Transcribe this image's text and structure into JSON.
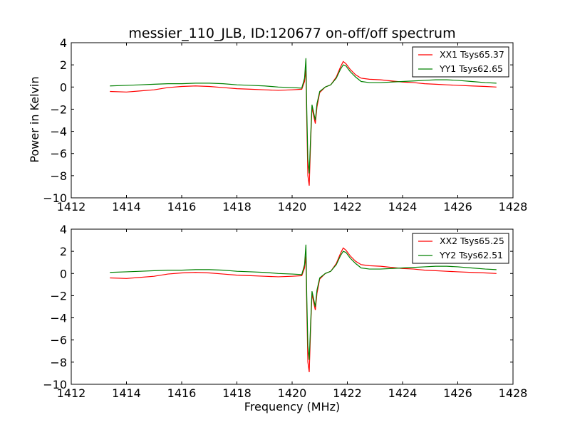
{
  "figure": {
    "title": "messier_110_JLB, ID:120677 on-off/off spectrum",
    "ylabel": "Power in Kelvin",
    "xlabel": "Frequency (MHz)"
  },
  "chart_data": [
    {
      "type": "line",
      "xlim": [
        1412,
        1428
      ],
      "ylim": [
        -10,
        4
      ],
      "xticks": [
        "1412",
        "1414",
        "1416",
        "1418",
        "1420",
        "1422",
        "1424",
        "1426",
        "1428"
      ],
      "yticks": [
        "4",
        "2",
        "0",
        "−2",
        "−4",
        "−6",
        "−8",
        "−10"
      ],
      "legend_position": "top-right",
      "grid": false,
      "series": [
        {
          "name": "XX1 Tsys65.37",
          "color": "#ff0000",
          "points": [
            [
              1413.4,
              -0.4
            ],
            [
              1414.0,
              -0.45
            ],
            [
              1414.5,
              -0.35
            ],
            [
              1415.0,
              -0.25
            ],
            [
              1415.5,
              -0.05
            ],
            [
              1416.0,
              0.05
            ],
            [
              1416.5,
              0.1
            ],
            [
              1417.0,
              0.05
            ],
            [
              1417.5,
              -0.05
            ],
            [
              1418.0,
              -0.15
            ],
            [
              1418.5,
              -0.2
            ],
            [
              1419.0,
              -0.25
            ],
            [
              1419.5,
              -0.3
            ],
            [
              1420.0,
              -0.25
            ],
            [
              1420.35,
              -0.2
            ],
            [
              1420.45,
              0.5
            ],
            [
              1420.5,
              1.6
            ],
            [
              1420.53,
              -3.0
            ],
            [
              1420.57,
              -8.0
            ],
            [
              1420.62,
              -8.9
            ],
            [
              1420.67,
              -5.0
            ],
            [
              1420.72,
              -1.8
            ],
            [
              1420.78,
              -2.6
            ],
            [
              1420.84,
              -3.3
            ],
            [
              1420.9,
              -1.8
            ],
            [
              1421.0,
              -0.5
            ],
            [
              1421.2,
              0.0
            ],
            [
              1421.4,
              0.2
            ],
            [
              1421.6,
              0.9
            ],
            [
              1421.75,
              1.8
            ],
            [
              1421.85,
              2.3
            ],
            [
              1421.95,
              2.1
            ],
            [
              1422.1,
              1.6
            ],
            [
              1422.3,
              1.1
            ],
            [
              1422.5,
              0.8
            ],
            [
              1422.8,
              0.7
            ],
            [
              1423.2,
              0.65
            ],
            [
              1423.6,
              0.55
            ],
            [
              1424.0,
              0.45
            ],
            [
              1424.4,
              0.4
            ],
            [
              1424.8,
              0.3
            ],
            [
              1425.2,
              0.25
            ],
            [
              1425.6,
              0.2
            ],
            [
              1426.0,
              0.15
            ],
            [
              1426.5,
              0.1
            ],
            [
              1427.0,
              0.05
            ],
            [
              1427.4,
              0.0
            ]
          ]
        },
        {
          "name": "YY1 Tsys62.65",
          "color": "#008000",
          "points": [
            [
              1413.4,
              0.1
            ],
            [
              1414.0,
              0.15
            ],
            [
              1414.5,
              0.2
            ],
            [
              1415.0,
              0.25
            ],
            [
              1415.5,
              0.3
            ],
            [
              1416.0,
              0.3
            ],
            [
              1416.5,
              0.35
            ],
            [
              1417.0,
              0.35
            ],
            [
              1417.5,
              0.3
            ],
            [
              1418.0,
              0.2
            ],
            [
              1418.5,
              0.15
            ],
            [
              1419.0,
              0.1
            ],
            [
              1419.5,
              0.0
            ],
            [
              1420.0,
              -0.05
            ],
            [
              1420.35,
              -0.1
            ],
            [
              1420.45,
              0.8
            ],
            [
              1420.5,
              2.6
            ],
            [
              1420.53,
              -2.0
            ],
            [
              1420.57,
              -6.5
            ],
            [
              1420.62,
              -7.8
            ],
            [
              1420.67,
              -4.5
            ],
            [
              1420.72,
              -1.6
            ],
            [
              1420.78,
              -2.3
            ],
            [
              1420.84,
              -3.0
            ],
            [
              1420.9,
              -1.5
            ],
            [
              1421.0,
              -0.4
            ],
            [
              1421.2,
              0.0
            ],
            [
              1421.4,
              0.2
            ],
            [
              1421.6,
              0.8
            ],
            [
              1421.75,
              1.6
            ],
            [
              1421.85,
              2.0
            ],
            [
              1421.95,
              1.9
            ],
            [
              1422.1,
              1.4
            ],
            [
              1422.3,
              0.9
            ],
            [
              1422.5,
              0.5
            ],
            [
              1422.8,
              0.4
            ],
            [
              1423.2,
              0.4
            ],
            [
              1423.6,
              0.45
            ],
            [
              1424.0,
              0.5
            ],
            [
              1424.4,
              0.55
            ],
            [
              1424.8,
              0.6
            ],
            [
              1425.2,
              0.65
            ],
            [
              1425.6,
              0.65
            ],
            [
              1426.0,
              0.6
            ],
            [
              1426.5,
              0.5
            ],
            [
              1427.0,
              0.4
            ],
            [
              1427.4,
              0.35
            ]
          ]
        }
      ]
    },
    {
      "type": "line",
      "xlim": [
        1412,
        1428
      ],
      "ylim": [
        -10,
        4
      ],
      "xticks": [
        "1412",
        "1414",
        "1416",
        "1418",
        "1420",
        "1422",
        "1424",
        "1426",
        "1428"
      ],
      "yticks": [
        "4",
        "2",
        "0",
        "−2",
        "−4",
        "−6",
        "−8",
        "−10"
      ],
      "legend_position": "top-right",
      "grid": false,
      "series": [
        {
          "name": "XX2 Tsys65.25",
          "color": "#ff0000",
          "points": [
            [
              1413.4,
              -0.4
            ],
            [
              1414.0,
              -0.45
            ],
            [
              1414.5,
              -0.35
            ],
            [
              1415.0,
              -0.25
            ],
            [
              1415.5,
              -0.05
            ],
            [
              1416.0,
              0.05
            ],
            [
              1416.5,
              0.1
            ],
            [
              1417.0,
              0.05
            ],
            [
              1417.5,
              -0.05
            ],
            [
              1418.0,
              -0.15
            ],
            [
              1418.5,
              -0.2
            ],
            [
              1419.0,
              -0.25
            ],
            [
              1419.5,
              -0.3
            ],
            [
              1420.0,
              -0.25
            ],
            [
              1420.35,
              -0.2
            ],
            [
              1420.45,
              0.5
            ],
            [
              1420.5,
              1.6
            ],
            [
              1420.53,
              -3.0
            ],
            [
              1420.57,
              -8.0
            ],
            [
              1420.62,
              -8.9
            ],
            [
              1420.67,
              -5.0
            ],
            [
              1420.72,
              -1.8
            ],
            [
              1420.78,
              -2.6
            ],
            [
              1420.84,
              -3.3
            ],
            [
              1420.9,
              -1.8
            ],
            [
              1421.0,
              -0.5
            ],
            [
              1421.2,
              0.0
            ],
            [
              1421.4,
              0.2
            ],
            [
              1421.6,
              0.9
            ],
            [
              1421.75,
              1.8
            ],
            [
              1421.85,
              2.3
            ],
            [
              1421.95,
              2.1
            ],
            [
              1422.1,
              1.6
            ],
            [
              1422.3,
              1.1
            ],
            [
              1422.5,
              0.8
            ],
            [
              1422.8,
              0.7
            ],
            [
              1423.2,
              0.65
            ],
            [
              1423.6,
              0.55
            ],
            [
              1424.0,
              0.45
            ],
            [
              1424.4,
              0.4
            ],
            [
              1424.8,
              0.3
            ],
            [
              1425.2,
              0.25
            ],
            [
              1425.6,
              0.2
            ],
            [
              1426.0,
              0.15
            ],
            [
              1426.5,
              0.1
            ],
            [
              1427.0,
              0.05
            ],
            [
              1427.4,
              0.0
            ]
          ]
        },
        {
          "name": "YY2 Tsys62.51",
          "color": "#008000",
          "points": [
            [
              1413.4,
              0.1
            ],
            [
              1414.0,
              0.15
            ],
            [
              1414.5,
              0.2
            ],
            [
              1415.0,
              0.25
            ],
            [
              1415.5,
              0.3
            ],
            [
              1416.0,
              0.3
            ],
            [
              1416.5,
              0.35
            ],
            [
              1417.0,
              0.35
            ],
            [
              1417.5,
              0.3
            ],
            [
              1418.0,
              0.2
            ],
            [
              1418.5,
              0.15
            ],
            [
              1419.0,
              0.1
            ],
            [
              1419.5,
              0.0
            ],
            [
              1420.0,
              -0.05
            ],
            [
              1420.35,
              -0.1
            ],
            [
              1420.45,
              0.8
            ],
            [
              1420.5,
              2.6
            ],
            [
              1420.53,
              -2.0
            ],
            [
              1420.57,
              -6.5
            ],
            [
              1420.62,
              -7.8
            ],
            [
              1420.67,
              -4.5
            ],
            [
              1420.72,
              -1.6
            ],
            [
              1420.78,
              -2.3
            ],
            [
              1420.84,
              -3.0
            ],
            [
              1420.9,
              -1.5
            ],
            [
              1421.0,
              -0.4
            ],
            [
              1421.2,
              0.0
            ],
            [
              1421.4,
              0.2
            ],
            [
              1421.6,
              0.8
            ],
            [
              1421.75,
              1.6
            ],
            [
              1421.85,
              2.0
            ],
            [
              1421.95,
              1.9
            ],
            [
              1422.1,
              1.4
            ],
            [
              1422.3,
              0.9
            ],
            [
              1422.5,
              0.5
            ],
            [
              1422.8,
              0.4
            ],
            [
              1423.2,
              0.4
            ],
            [
              1423.6,
              0.45
            ],
            [
              1424.0,
              0.5
            ],
            [
              1424.4,
              0.55
            ],
            [
              1424.8,
              0.6
            ],
            [
              1425.2,
              0.65
            ],
            [
              1425.6,
              0.65
            ],
            [
              1426.0,
              0.6
            ],
            [
              1426.5,
              0.5
            ],
            [
              1427.0,
              0.4
            ],
            [
              1427.4,
              0.35
            ]
          ]
        }
      ]
    }
  ]
}
